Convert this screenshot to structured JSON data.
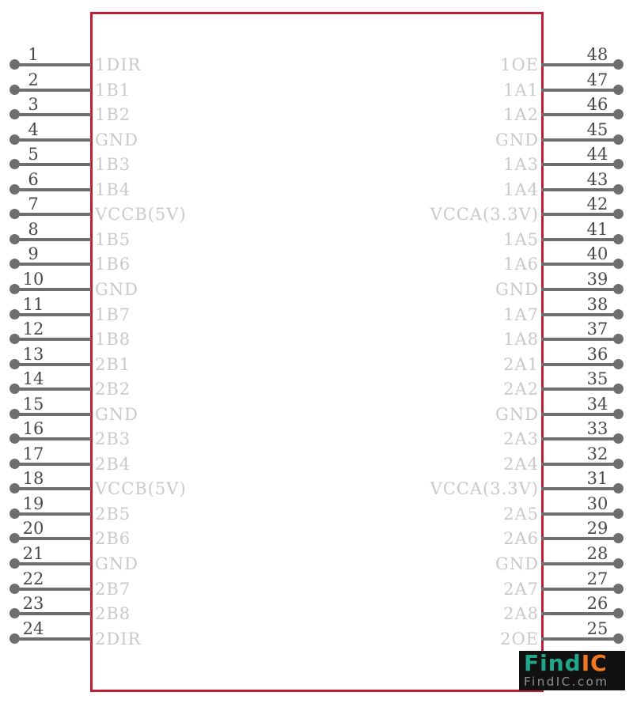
{
  "colors": {
    "border": "#c11d33",
    "pin": "#6e6e6e",
    "pin_number": "#4a4a4a",
    "pin_label": "#c9c9c9",
    "logo_bg": "#111111",
    "logo_teal": "#1fa68b",
    "logo_orange": "#f2791d",
    "logo_domain": "#8f8f8f"
  },
  "symbol": {
    "left_pins": [
      {
        "number": "1",
        "label": "1DIR"
      },
      {
        "number": "2",
        "label": "1B1"
      },
      {
        "number": "3",
        "label": "1B2"
      },
      {
        "number": "4",
        "label": "GND"
      },
      {
        "number": "5",
        "label": "1B3"
      },
      {
        "number": "6",
        "label": "1B4"
      },
      {
        "number": "7",
        "label": "VCCB(5V)"
      },
      {
        "number": "8",
        "label": "1B5"
      },
      {
        "number": "9",
        "label": "1B6"
      },
      {
        "number": "10",
        "label": "GND"
      },
      {
        "number": "11",
        "label": "1B7"
      },
      {
        "number": "12",
        "label": "1B8"
      },
      {
        "number": "13",
        "label": "2B1"
      },
      {
        "number": "14",
        "label": "2B2"
      },
      {
        "number": "15",
        "label": "GND"
      },
      {
        "number": "16",
        "label": "2B3"
      },
      {
        "number": "17",
        "label": "2B4"
      },
      {
        "number": "18",
        "label": "VCCB(5V)"
      },
      {
        "number": "19",
        "label": "2B5"
      },
      {
        "number": "20",
        "label": "2B6"
      },
      {
        "number": "21",
        "label": "GND"
      },
      {
        "number": "22",
        "label": "2B7"
      },
      {
        "number": "23",
        "label": "2B8"
      },
      {
        "number": "24",
        "label": "2DIR"
      }
    ],
    "right_pins": [
      {
        "number": "48",
        "label": "1OE"
      },
      {
        "number": "47",
        "label": "1A1"
      },
      {
        "number": "46",
        "label": "1A2"
      },
      {
        "number": "45",
        "label": "GND"
      },
      {
        "number": "44",
        "label": "1A3"
      },
      {
        "number": "43",
        "label": "1A4"
      },
      {
        "number": "42",
        "label": "VCCA(3.3V)"
      },
      {
        "number": "41",
        "label": "1A5"
      },
      {
        "number": "40",
        "label": "1A6"
      },
      {
        "number": "39",
        "label": "GND"
      },
      {
        "number": "38",
        "label": "1A7"
      },
      {
        "number": "37",
        "label": "1A8"
      },
      {
        "number": "36",
        "label": "2A1"
      },
      {
        "number": "35",
        "label": "2A2"
      },
      {
        "number": "34",
        "label": "GND"
      },
      {
        "number": "33",
        "label": "2A3"
      },
      {
        "number": "32",
        "label": "2A4"
      },
      {
        "number": "31",
        "label": "VCCA(3.3V)"
      },
      {
        "number": "30",
        "label": "2A5"
      },
      {
        "number": "29",
        "label": "2A6"
      },
      {
        "number": "28",
        "label": "GND"
      },
      {
        "number": "27",
        "label": "2A7"
      },
      {
        "number": "26",
        "label": "2A8"
      },
      {
        "number": "25",
        "label": "2OE"
      }
    ]
  },
  "watermark": {
    "brand_find": "Find",
    "brand_ic": "IC",
    "domain": "FindIC.com"
  }
}
